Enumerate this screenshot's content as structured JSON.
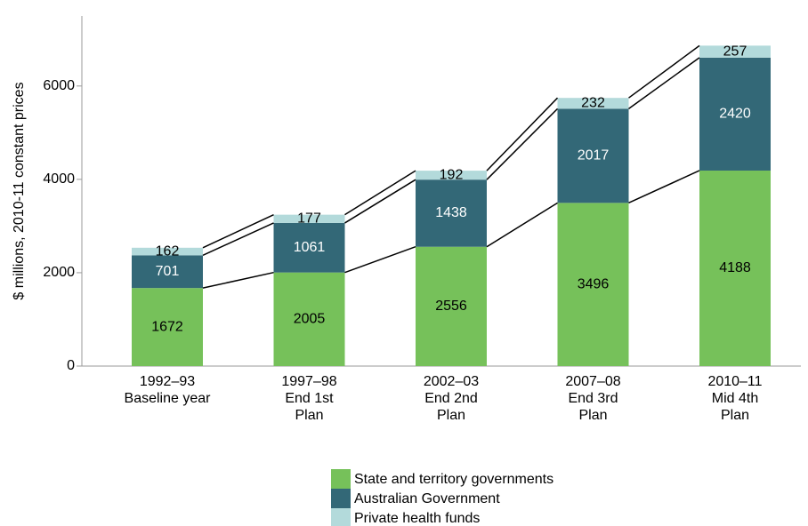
{
  "chart_data": {
    "type": "stacked_bar",
    "y_label": "$ millions, 2010-11 constant prices",
    "categories": [
      [
        "1992–93",
        "Baseline year"
      ],
      [
        "1997–98",
        "End 1st",
        "Plan"
      ],
      [
        "2002–03",
        "End 2nd",
        "Plan"
      ],
      [
        "2007–08",
        "End 3rd",
        "Plan"
      ],
      [
        "2010–11",
        "Mid 4th",
        "Plan"
      ]
    ],
    "series": [
      {
        "name": "State and territory governments",
        "color": "#76c15a",
        "label_color": "#000000",
        "values": [
          1672,
          2005,
          2556,
          3496,
          4188
        ]
      },
      {
        "name": "Australian Government",
        "color": "#336877",
        "label_color": "#ffffff",
        "values": [
          701,
          1061,
          1438,
          2017,
          2420
        ]
      },
      {
        "name": "Private health funds",
        "color": "#b3dadb",
        "label_color": "#000000",
        "values": [
          162,
          177,
          192,
          232,
          257
        ]
      }
    ],
    "ylim": [
      0,
      7500
    ],
    "yticks": [
      0,
      2000,
      4000,
      6000
    ]
  }
}
